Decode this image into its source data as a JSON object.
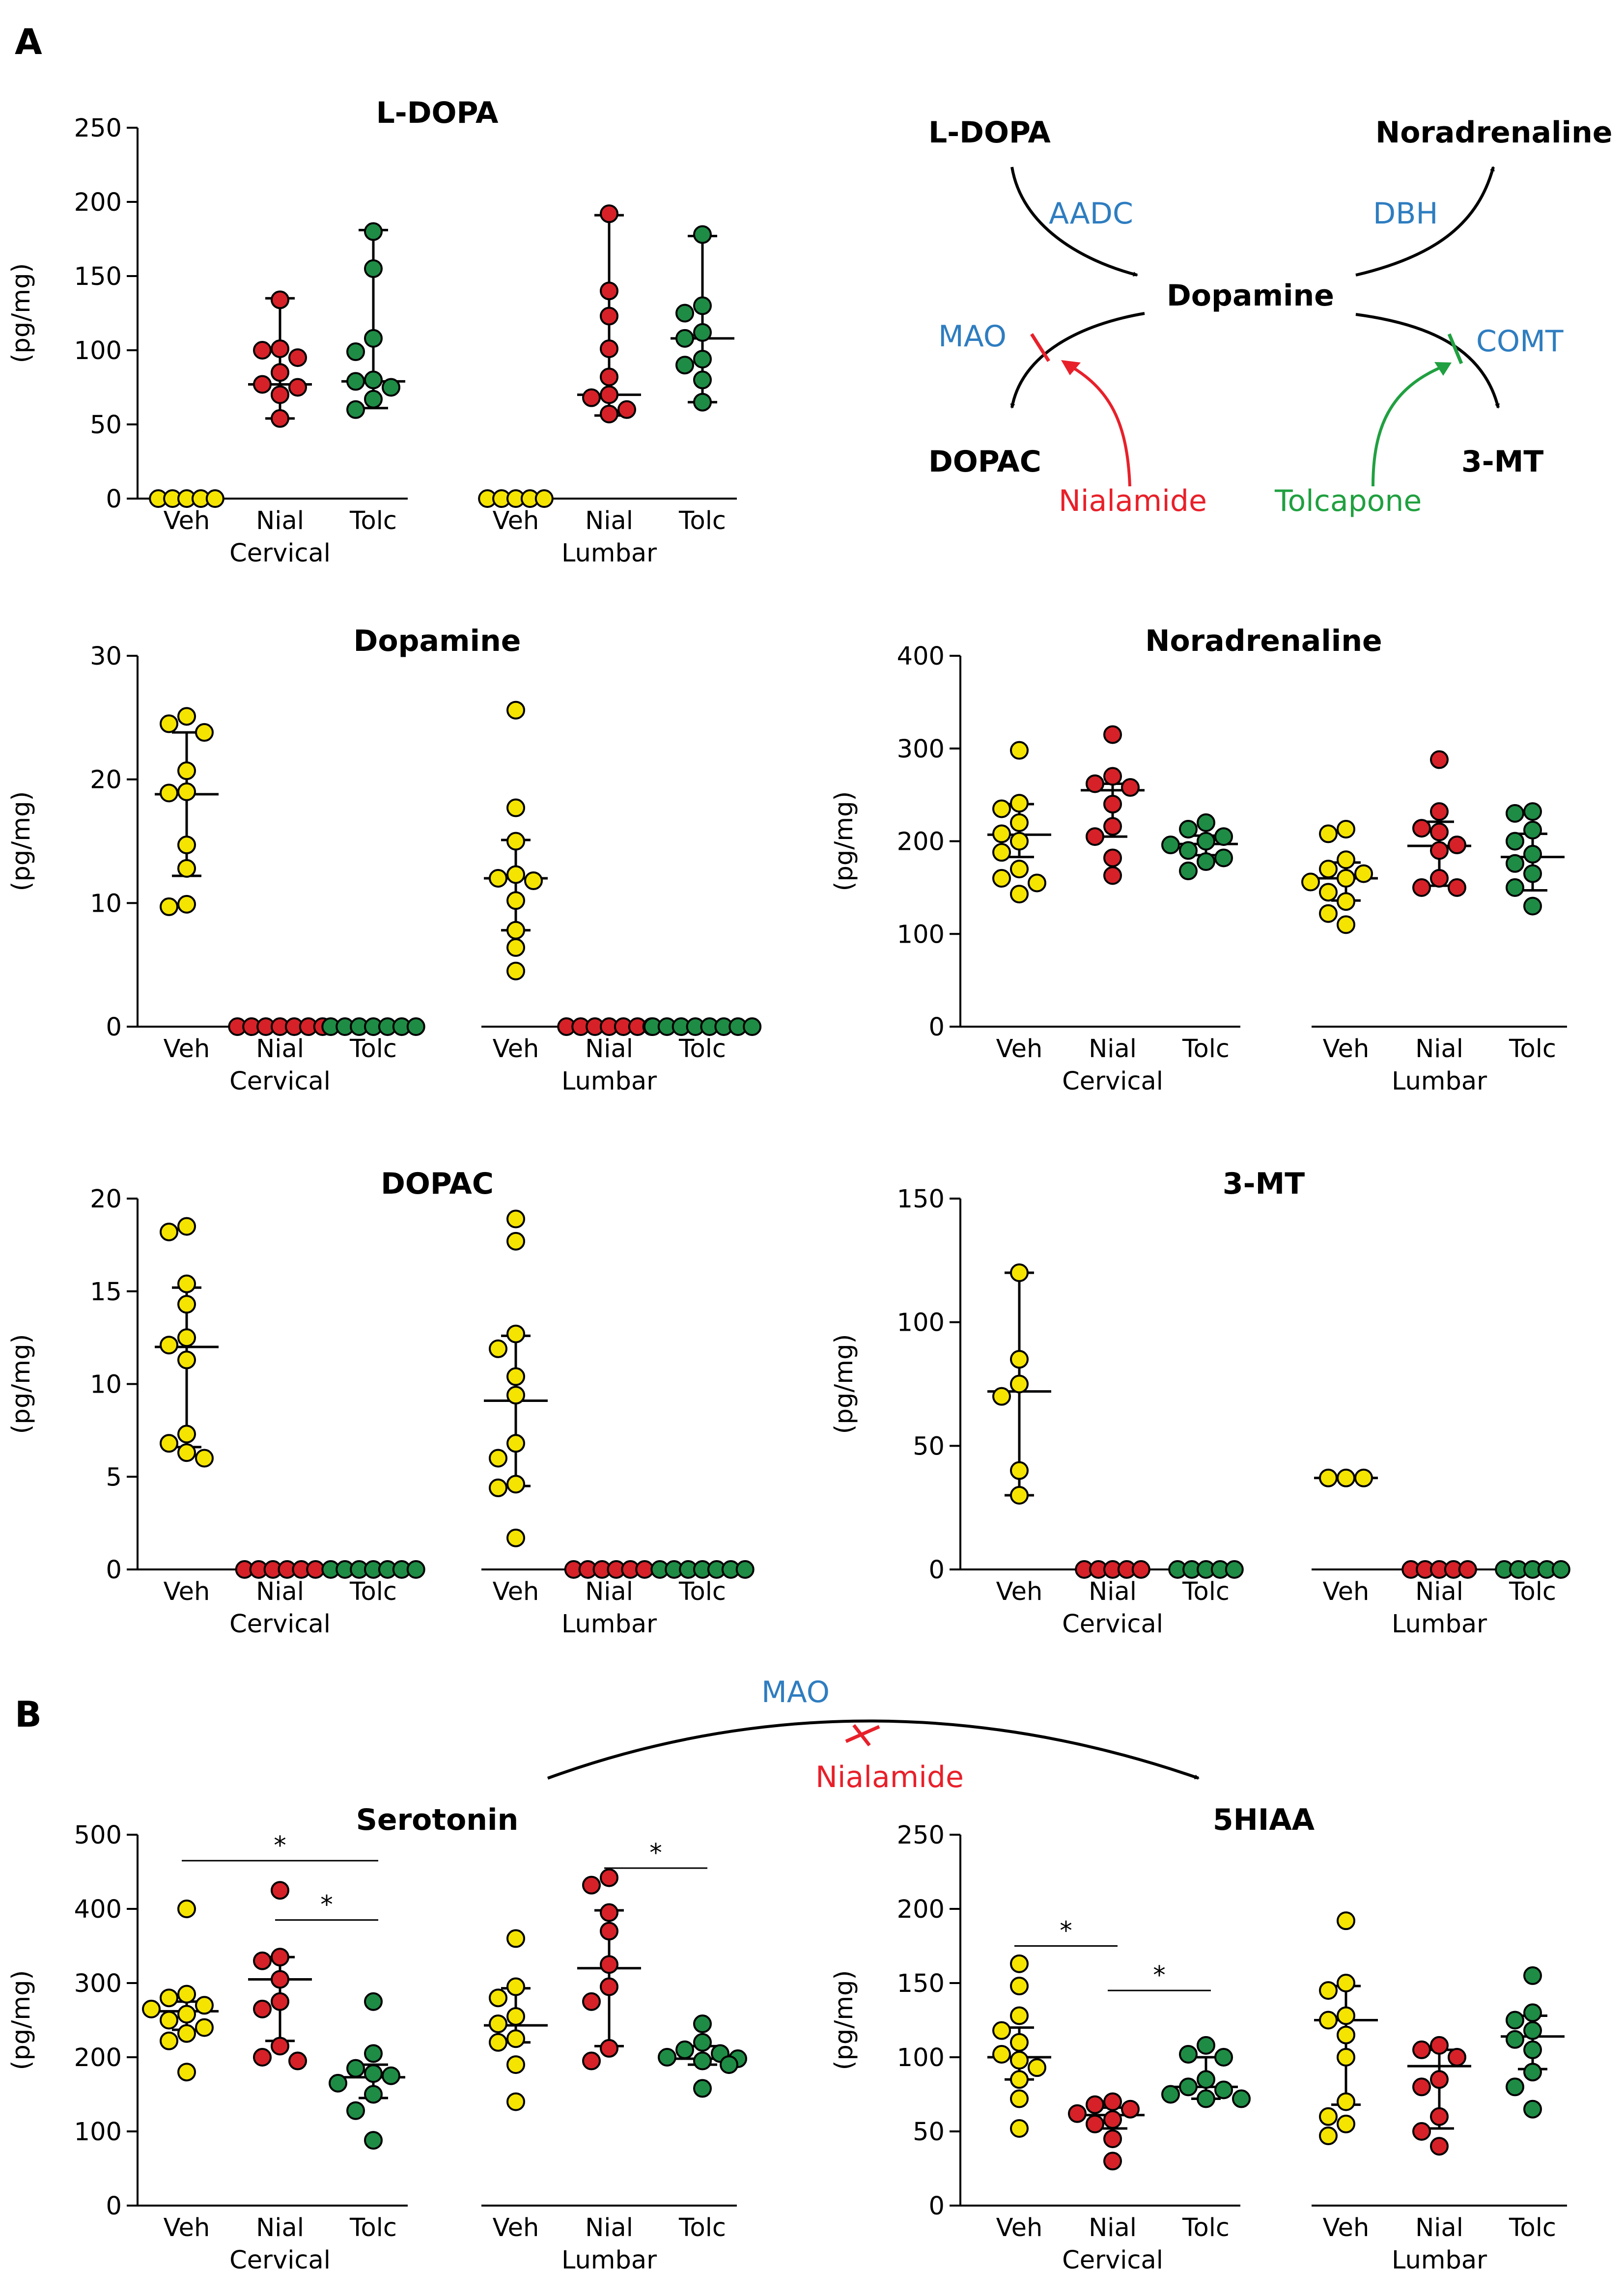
{
  "panel_labels": {
    "a": "A",
    "b": "B"
  },
  "colors": {
    "Veh": "#f5e400",
    "Nial": "#d62128",
    "Tolc": "#1e8c45",
    "Veh_text": "#000000",
    "Nial_text": "#e8202a",
    "Tolc_text": "#20a040",
    "enzyme": "#2e7dc0"
  },
  "y_axis_label": "(pg/mg)",
  "group_labels": [
    "Veh",
    "Nial",
    "Tolc"
  ],
  "region_labels": [
    "Cervical",
    "Lumbar"
  ],
  "significance_mark": "*",
  "pathway": {
    "ldopa": "L-DOPA",
    "noradrenaline": "Noradrenaline",
    "dopamine": "Dopamine",
    "dopac": "DOPAC",
    "mt3": "3-MT",
    "aadc": "AADC",
    "dbh": "DBH",
    "mao": "MAO",
    "comt": "COMT",
    "nialamide": "Nialamide",
    "tolcapone": "Tolcapone"
  },
  "pathway_b": {
    "mao": "MAO",
    "nialamide": "Nialamide"
  },
  "chart_data": [
    {
      "id": "ldopa",
      "type": "scatter",
      "title": "L-DOPA",
      "ylabel": "(pg/mg)",
      "ylim": [
        0,
        250
      ],
      "yticks": [
        0,
        50,
        100,
        150,
        200,
        250
      ],
      "groups": [
        {
          "region": "Cervical",
          "treatment": "Veh",
          "values": [
            0,
            0,
            0,
            0,
            0
          ],
          "median": 0,
          "q1": 0,
          "q3": 0
        },
        {
          "region": "Cervical",
          "treatment": "Nial",
          "values": [
            134,
            101,
            100,
            95,
            85,
            77,
            75,
            70,
            54
          ],
          "median": 77,
          "q1": 54,
          "q3": 135
        },
        {
          "region": "Cervical",
          "treatment": "Tolc",
          "values": [
            180,
            155,
            108,
            99,
            80,
            79,
            75,
            67,
            60
          ],
          "median": 79,
          "q1": 61,
          "q3": 181
        },
        {
          "region": "Lumbar",
          "treatment": "Veh",
          "values": [
            0,
            0,
            0,
            0,
            0
          ],
          "median": 0,
          "q1": 0,
          "q3": 0
        },
        {
          "region": "Lumbar",
          "treatment": "Nial",
          "values": [
            192,
            140,
            123,
            101,
            82,
            70,
            68,
            60,
            57
          ],
          "median": 70,
          "q1": 56,
          "q3": 191
        },
        {
          "region": "Lumbar",
          "treatment": "Tolc",
          "values": [
            178,
            130,
            125,
            112,
            108,
            94,
            90,
            80,
            65
          ],
          "median": 108,
          "q1": 65,
          "q3": 177
        }
      ],
      "significance": []
    },
    {
      "id": "dopamine",
      "type": "scatter",
      "title": "Dopamine",
      "ylabel": "(pg/mg)",
      "ylim": [
        0,
        30
      ],
      "yticks": [
        0,
        10,
        20,
        30
      ],
      "groups": [
        {
          "region": "Cervical",
          "treatment": "Veh",
          "values": [
            25.1,
            24.5,
            23.8,
            20.7,
            19,
            18.9,
            14.7,
            12.8,
            9.9,
            9.7
          ],
          "median": 18.8,
          "q1": 12.2,
          "q3": 23.8
        },
        {
          "region": "Cervical",
          "treatment": "Nial",
          "values": [
            0,
            0,
            0,
            0,
            0,
            0,
            0
          ],
          "median": 0,
          "q1": 0,
          "q3": 0
        },
        {
          "region": "Cervical",
          "treatment": "Tolc",
          "values": [
            0,
            0,
            0,
            0,
            0,
            0,
            0
          ],
          "median": 0,
          "q1": 0,
          "q3": 0
        },
        {
          "region": "Lumbar",
          "treatment": "Veh",
          "values": [
            25.6,
            17.7,
            15,
            12.3,
            12,
            11.8,
            10.2,
            7.8,
            6.4,
            4.5
          ],
          "median": 12,
          "q1": 7.8,
          "q3": 15.1
        },
        {
          "region": "Lumbar",
          "treatment": "Nial",
          "values": [
            0,
            0,
            0,
            0,
            0,
            0,
            0
          ],
          "median": 0,
          "q1": 0,
          "q3": 0
        },
        {
          "region": "Lumbar",
          "treatment": "Tolc",
          "values": [
            0,
            0,
            0,
            0,
            0,
            0,
            0,
            0
          ],
          "median": 0,
          "q1": 0,
          "q3": 0
        }
      ],
      "significance": []
    },
    {
      "id": "noradrenaline",
      "type": "scatter",
      "title": "Noradrenaline",
      "ylabel": "(pg/mg)",
      "ylim": [
        0,
        400
      ],
      "yticks": [
        0,
        100,
        200,
        300,
        400
      ],
      "groups": [
        {
          "region": "Cervical",
          "treatment": "Veh",
          "values": [
            298,
            241,
            235,
            220,
            208,
            200,
            188,
            170,
            160,
            155,
            143
          ],
          "median": 207,
          "q1": 183,
          "q3": 240
        },
        {
          "region": "Cervical",
          "treatment": "Nial",
          "values": [
            315,
            270,
            262,
            258,
            240,
            216,
            205,
            182,
            163
          ],
          "median": 255,
          "q1": 205,
          "q3": 262
        },
        {
          "region": "Cervical",
          "treatment": "Tolc",
          "values": [
            220,
            213,
            205,
            200,
            196,
            190,
            182,
            178,
            168
          ],
          "median": 197,
          "q1": 185,
          "q3": 206
        },
        {
          "region": "Lumbar",
          "treatment": "Veh",
          "values": [
            213,
            208,
            180,
            170,
            165,
            160,
            156,
            145,
            135,
            122,
            110
          ],
          "median": 160,
          "q1": 136,
          "q3": 177
        },
        {
          "region": "Lumbar",
          "treatment": "Nial",
          "values": [
            288,
            232,
            214,
            210,
            196,
            190,
            160,
            150,
            150
          ],
          "median": 195,
          "q1": 152,
          "q3": 221
        },
        {
          "region": "Lumbar",
          "treatment": "Tolc",
          "values": [
            232,
            230,
            212,
            200,
            186,
            176,
            165,
            150,
            130
          ],
          "median": 183,
          "q1": 147,
          "q3": 208
        }
      ],
      "significance": []
    },
    {
      "id": "dopac",
      "type": "scatter",
      "title": "DOPAC",
      "ylabel": "(pg/mg)",
      "ylim": [
        0,
        20
      ],
      "yticks": [
        0,
        5,
        10,
        15,
        20
      ],
      "groups": [
        {
          "region": "Cervical",
          "treatment": "Veh",
          "values": [
            18.5,
            18.2,
            15.4,
            14.3,
            12.5,
            12.1,
            11.3,
            7.3,
            6.8,
            6.3,
            6
          ],
          "median": 12,
          "q1": 6.6,
          "q3": 15.2
        },
        {
          "region": "Cervical",
          "treatment": "Nial",
          "values": [
            0,
            0,
            0,
            0,
            0,
            0
          ],
          "median": 0,
          "q1": 0,
          "q3": 0
        },
        {
          "region": "Cervical",
          "treatment": "Tolc",
          "values": [
            0,
            0,
            0,
            0,
            0,
            0,
            0
          ],
          "median": 0,
          "q1": 0,
          "q3": 0
        },
        {
          "region": "Lumbar",
          "treatment": "Veh",
          "values": [
            18.9,
            17.7,
            12.7,
            11.9,
            10.4,
            9.4,
            6.8,
            6,
            4.6,
            4.4,
            1.7
          ],
          "median": 9.1,
          "q1": 4.5,
          "q3": 12.6
        },
        {
          "region": "Lumbar",
          "treatment": "Nial",
          "values": [
            0,
            0,
            0,
            0,
            0,
            0
          ],
          "median": 0,
          "q1": 0,
          "q3": 0
        },
        {
          "region": "Lumbar",
          "treatment": "Tolc",
          "values": [
            0,
            0,
            0,
            0,
            0,
            0,
            0
          ],
          "median": 0,
          "q1": 0,
          "q3": 0
        }
      ],
      "significance": []
    },
    {
      "id": "mt3",
      "type": "scatter",
      "title": "3-MT",
      "ylabel": "(pg/mg)",
      "ylim": [
        0,
        150
      ],
      "yticks": [
        0,
        50,
        100,
        150
      ],
      "groups": [
        {
          "region": "Cervical",
          "treatment": "Veh",
          "values": [
            120,
            85,
            75,
            70,
            40,
            30
          ],
          "median": 72,
          "q1": 30,
          "q3": 120
        },
        {
          "region": "Cervical",
          "treatment": "Nial",
          "values": [
            0,
            0,
            0,
            0,
            0
          ],
          "median": 0,
          "q1": 0,
          "q3": 0
        },
        {
          "region": "Cervical",
          "treatment": "Tolc",
          "values": [
            0,
            0,
            0,
            0,
            0
          ],
          "median": 0,
          "q1": 0,
          "q3": 0
        },
        {
          "region": "Lumbar",
          "treatment": "Veh",
          "values": [
            37,
            37,
            37
          ],
          "median": 37,
          "q1": 37,
          "q3": 37
        },
        {
          "region": "Lumbar",
          "treatment": "Nial",
          "values": [
            0,
            0,
            0,
            0,
            0
          ],
          "median": 0,
          "q1": 0,
          "q3": 0
        },
        {
          "region": "Lumbar",
          "treatment": "Tolc",
          "values": [
            0,
            0,
            0,
            0,
            0
          ],
          "median": 0,
          "q1": 0,
          "q3": 0
        }
      ],
      "significance": []
    },
    {
      "id": "serotonin",
      "type": "scatter",
      "title": "Serotonin",
      "ylabel": "(pg/mg)",
      "ylim": [
        0,
        500
      ],
      "yticks": [
        0,
        100,
        200,
        300,
        400,
        500
      ],
      "groups": [
        {
          "region": "Cervical",
          "treatment": "Veh",
          "values": [
            400,
            285,
            280,
            270,
            265,
            258,
            250,
            240,
            232,
            222,
            180
          ],
          "median": 262,
          "q1": 237,
          "q3": 275
        },
        {
          "region": "Cervical",
          "treatment": "Nial",
          "values": [
            425,
            335,
            330,
            305,
            275,
            265,
            215,
            200,
            195
          ],
          "median": 305,
          "q1": 222,
          "q3": 335
        },
        {
          "region": "Cervical",
          "treatment": "Tolc",
          "values": [
            275,
            205,
            185,
            178,
            175,
            165,
            150,
            128,
            88
          ],
          "median": 173,
          "q1": 145,
          "q3": 190
        },
        {
          "region": "Lumbar",
          "treatment": "Veh",
          "values": [
            360,
            295,
            280,
            255,
            245,
            225,
            220,
            190,
            140
          ],
          "median": 243,
          "q1": 220,
          "q3": 293
        },
        {
          "region": "Lumbar",
          "treatment": "Nial",
          "values": [
            442,
            432,
            395,
            370,
            325,
            295,
            275,
            212,
            195
          ],
          "median": 320,
          "q1": 215,
          "q3": 398
        },
        {
          "region": "Lumbar",
          "treatment": "Tolc",
          "values": [
            245,
            220,
            210,
            205,
            200,
            198,
            195,
            190,
            158
          ],
          "median": 198,
          "q1": 190,
          "q3": 215
        }
      ],
      "significance": [
        {
          "from": 0,
          "to": 2,
          "y": 465,
          "label": "*"
        },
        {
          "from": 1,
          "to": 2,
          "y": 385,
          "label": "*"
        },
        {
          "from": 4,
          "to": 5,
          "y": 455,
          "label": "*"
        }
      ]
    },
    {
      "id": "hiaa",
      "type": "scatter",
      "title": "5HIAA",
      "ylabel": "(pg/mg)",
      "ylim": [
        0,
        250
      ],
      "yticks": [
        0,
        50,
        100,
        150,
        200,
        250
      ],
      "groups": [
        {
          "region": "Cervical",
          "treatment": "Veh",
          "values": [
            163,
            148,
            128,
            118,
            110,
            102,
            98,
            93,
            85,
            72,
            52
          ],
          "median": 100,
          "q1": 85,
          "q3": 120
        },
        {
          "region": "Cervical",
          "treatment": "Nial",
          "values": [
            70,
            68,
            65,
            62,
            58,
            55,
            45,
            30
          ],
          "median": 61,
          "q1": 52,
          "q3": 66
        },
        {
          "region": "Cervical",
          "treatment": "Tolc",
          "values": [
            108,
            102,
            100,
            85,
            80,
            78,
            75,
            72,
            72
          ],
          "median": 80,
          "q1": 72,
          "q3": 100
        },
        {
          "region": "Lumbar",
          "treatment": "Veh",
          "values": [
            192,
            150,
            145,
            128,
            125,
            115,
            100,
            70,
            60,
            55,
            47
          ],
          "median": 125,
          "q1": 68,
          "q3": 148
        },
        {
          "region": "Lumbar",
          "treatment": "Nial",
          "values": [
            108,
            105,
            100,
            85,
            80,
            60,
            50,
            40
          ],
          "median": 94,
          "q1": 52,
          "q3": 105
        },
        {
          "region": "Lumbar",
          "treatment": "Tolc",
          "values": [
            155,
            130,
            125,
            118,
            112,
            105,
            90,
            80,
            65
          ],
          "median": 114,
          "q1": 92,
          "q3": 128
        }
      ],
      "significance": [
        {
          "from": 0,
          "to": 1,
          "y": 175,
          "label": "*"
        },
        {
          "from": 1,
          "to": 2,
          "y": 145,
          "label": "*"
        }
      ]
    }
  ]
}
